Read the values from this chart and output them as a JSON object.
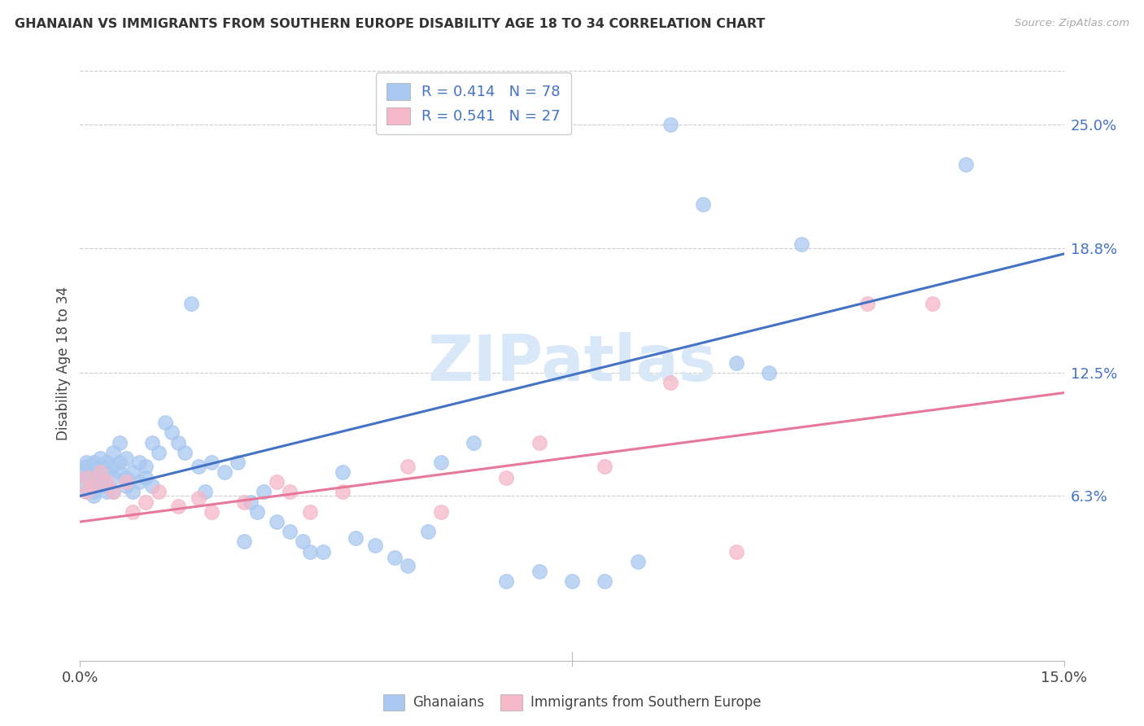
{
  "title": "GHANAIAN VS IMMIGRANTS FROM SOUTHERN EUROPE DISABILITY AGE 18 TO 34 CORRELATION CHART",
  "source": "Source: ZipAtlas.com",
  "ylabel": "Disability Age 18 to 34",
  "ytick_labels": [
    "6.3%",
    "12.5%",
    "18.8%",
    "25.0%"
  ],
  "ytick_values": [
    0.063,
    0.125,
    0.188,
    0.25
  ],
  "xlim": [
    0.0,
    0.15
  ],
  "ylim": [
    -0.02,
    0.28
  ],
  "legend_r_blue": "R = 0.414",
  "legend_n_blue": "N = 78",
  "legend_r_pink": "R = 0.541",
  "legend_n_pink": "N = 27",
  "legend_label_blue": "Ghanaians",
  "legend_label_pink": "Immigrants from Southern Europe",
  "blue_color": "#A8C8F0",
  "pink_color": "#F5B8C8",
  "trendline_blue_color": "#4472C4",
  "trendline_pink_color": "#E8789A",
  "watermark_color": "#D8E8F8",
  "trendline_blue_x0": 0.0,
  "trendline_blue_y0": 0.063,
  "trendline_blue_x1": 0.15,
  "trendline_blue_y1": 0.185,
  "trendline_pink_x0": 0.0,
  "trendline_pink_y0": 0.05,
  "trendline_pink_x1": 0.15,
  "trendline_pink_y1": 0.115,
  "blue_x": [
    0.0,
    0.001,
    0.001,
    0.001,
    0.001,
    0.001,
    0.002,
    0.002,
    0.002,
    0.002,
    0.002,
    0.002,
    0.003,
    0.003,
    0.003,
    0.003,
    0.003,
    0.004,
    0.004,
    0.004,
    0.004,
    0.005,
    0.005,
    0.005,
    0.005,
    0.006,
    0.006,
    0.006,
    0.007,
    0.007,
    0.007,
    0.008,
    0.008,
    0.009,
    0.009,
    0.01,
    0.01,
    0.011,
    0.011,
    0.012,
    0.013,
    0.014,
    0.015,
    0.016,
    0.017,
    0.018,
    0.019,
    0.02,
    0.022,
    0.024,
    0.025,
    0.026,
    0.027,
    0.028,
    0.03,
    0.032,
    0.034,
    0.035,
    0.037,
    0.04,
    0.042,
    0.045,
    0.048,
    0.05,
    0.053,
    0.055,
    0.06,
    0.065,
    0.07,
    0.075,
    0.08,
    0.085,
    0.09,
    0.095,
    0.1,
    0.105,
    0.11,
    0.135
  ],
  "blue_y": [
    0.075,
    0.072,
    0.08,
    0.068,
    0.065,
    0.078,
    0.07,
    0.075,
    0.065,
    0.08,
    0.072,
    0.063,
    0.078,
    0.068,
    0.073,
    0.082,
    0.07,
    0.075,
    0.08,
    0.068,
    0.065,
    0.072,
    0.078,
    0.065,
    0.085,
    0.08,
    0.075,
    0.09,
    0.072,
    0.068,
    0.082,
    0.075,
    0.065,
    0.07,
    0.08,
    0.078,
    0.072,
    0.068,
    0.09,
    0.085,
    0.1,
    0.095,
    0.09,
    0.085,
    0.16,
    0.078,
    0.065,
    0.08,
    0.075,
    0.08,
    0.04,
    0.06,
    0.055,
    0.065,
    0.05,
    0.045,
    0.04,
    0.035,
    0.035,
    0.075,
    0.042,
    0.038,
    0.032,
    0.028,
    0.045,
    0.08,
    0.09,
    0.02,
    0.025,
    0.02,
    0.02,
    0.03,
    0.25,
    0.21,
    0.13,
    0.125,
    0.19,
    0.23
  ],
  "pink_x": [
    0.001,
    0.001,
    0.002,
    0.003,
    0.004,
    0.005,
    0.007,
    0.008,
    0.01,
    0.012,
    0.015,
    0.018,
    0.02,
    0.025,
    0.03,
    0.032,
    0.035,
    0.04,
    0.05,
    0.055,
    0.065,
    0.07,
    0.08,
    0.09,
    0.1,
    0.12,
    0.13
  ],
  "pink_y": [
    0.072,
    0.065,
    0.068,
    0.075,
    0.07,
    0.065,
    0.07,
    0.055,
    0.06,
    0.065,
    0.058,
    0.062,
    0.055,
    0.06,
    0.07,
    0.065,
    0.055,
    0.065,
    0.078,
    0.055,
    0.072,
    0.09,
    0.078,
    0.12,
    0.035,
    0.16,
    0.16
  ]
}
